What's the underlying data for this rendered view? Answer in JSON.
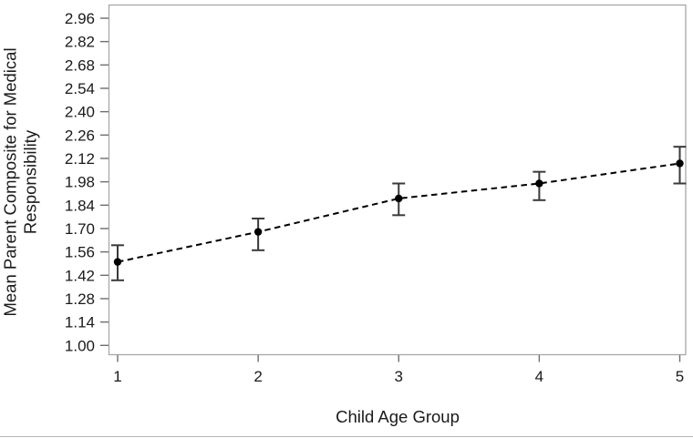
{
  "figure": {
    "background": "#ffffff",
    "bottom_rule_color": "#b5b5b5"
  },
  "chart_data": {
    "type": "line",
    "title": "",
    "xlabel": "Child Age Group",
    "ylabel": "Mean Parent Composite for Medical Responsibility",
    "ylabel_lines": [
      "Mean Parent Composite for Medical",
      "Responsibility"
    ],
    "x_tick_labels": [
      "1",
      "2",
      "3",
      "4",
      "5"
    ],
    "y_tick_labels": [
      "1.00",
      "1.14",
      "1.28",
      "1.42",
      "1.56",
      "1.70",
      "1.84",
      "1.98",
      "2.12",
      "2.26",
      "2.40",
      "2.54",
      "2.68",
      "2.82",
      "2.96"
    ],
    "ylim": [
      1.0,
      2.96
    ],
    "y_tick_step": 0.14,
    "grid": false,
    "legend": "none",
    "series": [
      {
        "name": "mean-parent-composite-with-error-bars",
        "marker": "filled-circle",
        "line_style": "dashed",
        "x": [
          1,
          2,
          3,
          4,
          5
        ],
        "values": [
          1.5,
          1.68,
          1.88,
          1.97,
          2.09
        ],
        "error_low": [
          1.39,
          1.57,
          1.78,
          1.87,
          1.97
        ],
        "error_high": [
          1.6,
          1.76,
          1.97,
          2.04,
          2.19
        ]
      }
    ],
    "colors": {
      "frame": "#a8a8a8",
      "tick": "#6e6e6e",
      "text": "#1a1a1a",
      "data": "#000000",
      "error_bar": "#3a3a3a"
    }
  }
}
